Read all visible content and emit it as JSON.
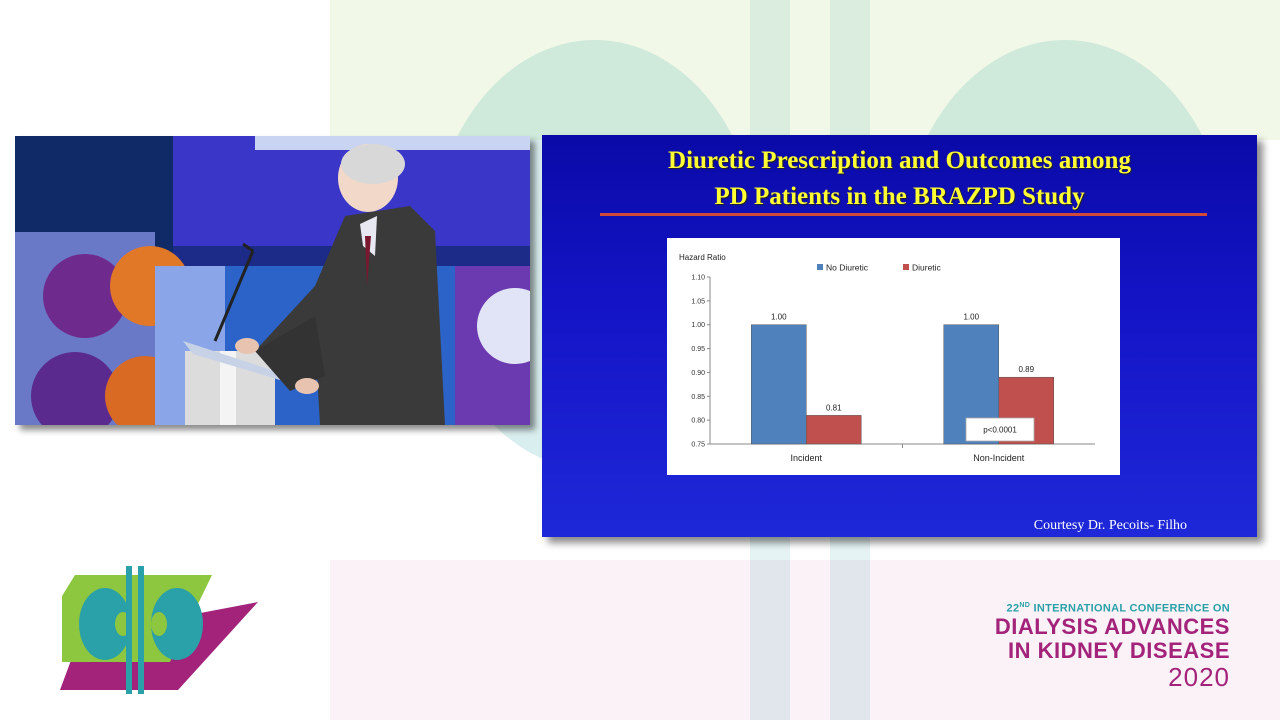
{
  "slide": {
    "title_line1": "Diuretic Prescription and Outcomes among",
    "title_line2": "PD Patients in the BRAZPD Study",
    "courtesy": "Courtesy Dr. Pecoits- Filho"
  },
  "chart_data": {
    "type": "bar",
    "ylabel": "Hazard Ratio",
    "ylim": [
      0.75,
      1.1
    ],
    "yticks": [
      "0.75",
      "0.80",
      "0.85",
      "0.90",
      "0.95",
      "1.00",
      "1.05",
      "1.10"
    ],
    "categories": [
      "Incident",
      "Non-Incident"
    ],
    "series": [
      {
        "name": "No Diuretic",
        "color": "#4f81bd",
        "values": [
          1.0,
          1.0
        ],
        "labels": [
          "1.00",
          "1.00"
        ]
      },
      {
        "name": "Diuretic",
        "color": "#c0504d",
        "values": [
          0.81,
          0.89
        ],
        "labels": [
          "0.81",
          "0.89"
        ]
      }
    ],
    "annotation": "p<0.0001",
    "legend": "top"
  },
  "conference": {
    "ordinal": "22",
    "ordinal_suffix": "ND",
    "line1": "INTERNATIONAL CONFERENCE ON",
    "line2": "DIALYSIS ADVANCES",
    "line3": "IN KIDNEY DISEASE",
    "year": "2020",
    "colors": {
      "teal": "#2aa0a8",
      "magenta": "#a3237a",
      "green": "#8dc63f"
    }
  }
}
